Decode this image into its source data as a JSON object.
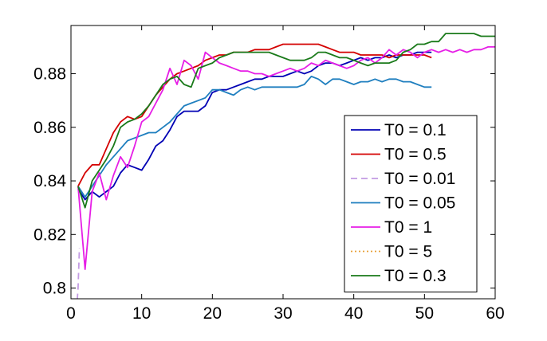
{
  "chart_data": {
    "type": "line",
    "title": "",
    "xlabel": "",
    "ylabel": "",
    "xlim": [
      0,
      60
    ],
    "ylim": [
      0.796,
      0.898
    ],
    "xticks": [
      0,
      10,
      20,
      30,
      40,
      50,
      60
    ],
    "yticks": [
      0.8,
      0.82,
      0.84,
      0.86,
      0.88
    ],
    "xtick_labels": [
      "0",
      "10",
      "20",
      "30",
      "40",
      "50",
      "60"
    ],
    "ytick_labels": [
      "0.8",
      "0.82",
      "0.84",
      "0.86",
      "0.88"
    ],
    "grid": false,
    "legend_position": "lower-right",
    "series": [
      {
        "name": "T0 = 0.1",
        "color": "#0000b4",
        "style": "solid",
        "x": [
          1,
          2,
          3,
          4,
          5,
          6,
          7,
          8,
          9,
          10,
          11,
          12,
          13,
          14,
          15,
          16,
          17,
          18,
          19,
          20,
          21,
          22,
          23,
          24,
          25,
          26,
          27,
          28,
          29,
          30,
          31,
          32,
          33,
          34,
          35,
          36,
          37,
          38,
          39,
          40,
          41,
          42,
          43,
          44,
          45,
          46,
          47,
          48,
          49,
          50,
          51
        ],
        "values": [
          0.837,
          0.833,
          0.836,
          0.834,
          0.836,
          0.838,
          0.843,
          0.846,
          0.845,
          0.844,
          0.848,
          0.853,
          0.855,
          0.859,
          0.864,
          0.866,
          0.866,
          0.866,
          0.868,
          0.873,
          0.874,
          0.874,
          0.875,
          0.876,
          0.877,
          0.878,
          0.878,
          0.879,
          0.879,
          0.879,
          0.88,
          0.881,
          0.88,
          0.881,
          0.883,
          0.884,
          0.884,
          0.883,
          0.884,
          0.885,
          0.886,
          0.885,
          0.886,
          0.886,
          0.887,
          0.886,
          0.887,
          0.887,
          0.888,
          0.888,
          0.888
        ]
      },
      {
        "name": "T0 = 0.5",
        "color": "#d40000",
        "style": "solid",
        "x": [
          1,
          2,
          3,
          4,
          5,
          6,
          7,
          8,
          9,
          10,
          11,
          12,
          13,
          14,
          15,
          16,
          17,
          18,
          19,
          20,
          21,
          22,
          23,
          24,
          25,
          26,
          27,
          28,
          29,
          30,
          31,
          32,
          33,
          34,
          35,
          36,
          37,
          38,
          39,
          40,
          41,
          42,
          43,
          44,
          45,
          46,
          47,
          48,
          49,
          50,
          51
        ],
        "values": [
          0.838,
          0.843,
          0.846,
          0.846,
          0.852,
          0.858,
          0.862,
          0.864,
          0.863,
          0.864,
          0.868,
          0.872,
          0.875,
          0.878,
          0.88,
          0.881,
          0.882,
          0.883,
          0.885,
          0.886,
          0.887,
          0.887,
          0.888,
          0.888,
          0.888,
          0.889,
          0.889,
          0.889,
          0.89,
          0.891,
          0.891,
          0.891,
          0.891,
          0.891,
          0.891,
          0.89,
          0.889,
          0.888,
          0.888,
          0.888,
          0.887,
          0.887,
          0.887,
          0.887,
          0.886,
          0.887,
          0.887,
          0.887,
          0.887,
          0.887,
          0.886
        ]
      },
      {
        "name": "T0 = 0.01",
        "color": "#c39be3",
        "style": "dashed",
        "x": [
          0.6,
          1,
          1.2
        ],
        "values": [
          0.784,
          0.8,
          0.815
        ]
      },
      {
        "name": "T0 = 0.05",
        "color": "#1f7fbf",
        "style": "solid",
        "x": [
          1,
          2,
          3,
          4,
          5,
          6,
          7,
          8,
          9,
          10,
          11,
          12,
          13,
          14,
          15,
          16,
          17,
          18,
          19,
          20,
          21,
          22,
          23,
          24,
          25,
          26,
          27,
          28,
          29,
          30,
          31,
          32,
          33,
          34,
          35,
          36,
          37,
          38,
          39,
          40,
          41,
          42,
          43,
          44,
          45,
          46,
          47,
          48,
          49,
          50,
          51
        ],
        "values": [
          0.838,
          0.834,
          0.838,
          0.842,
          0.846,
          0.849,
          0.852,
          0.855,
          0.856,
          0.857,
          0.858,
          0.858,
          0.86,
          0.862,
          0.865,
          0.868,
          0.869,
          0.87,
          0.871,
          0.874,
          0.874,
          0.873,
          0.872,
          0.874,
          0.875,
          0.874,
          0.875,
          0.875,
          0.875,
          0.875,
          0.875,
          0.875,
          0.876,
          0.879,
          0.878,
          0.876,
          0.878,
          0.878,
          0.877,
          0.876,
          0.877,
          0.877,
          0.878,
          0.877,
          0.878,
          0.878,
          0.877,
          0.877,
          0.876,
          0.875,
          0.875
        ]
      },
      {
        "name": "T0 = 1",
        "color": "#e61ee6",
        "style": "solid",
        "x": [
          1,
          2,
          3,
          4,
          5,
          6,
          7,
          8,
          9,
          10,
          11,
          12,
          13,
          14,
          15,
          16,
          17,
          18,
          19,
          20,
          21,
          22,
          23,
          24,
          25,
          26,
          27,
          28,
          29,
          30,
          31,
          32,
          33,
          34,
          35,
          36,
          37,
          38,
          39,
          40,
          41,
          42,
          43,
          44,
          45,
          46,
          47,
          48,
          49,
          50,
          51,
          52,
          53,
          54,
          55,
          56,
          57,
          58,
          59,
          60
        ],
        "values": [
          0.838,
          0.807,
          0.836,
          0.843,
          0.833,
          0.842,
          0.849,
          0.845,
          0.853,
          0.862,
          0.864,
          0.869,
          0.874,
          0.882,
          0.876,
          0.885,
          0.883,
          0.878,
          0.888,
          0.886,
          0.884,
          0.883,
          0.882,
          0.881,
          0.881,
          0.88,
          0.88,
          0.879,
          0.88,
          0.881,
          0.882,
          0.881,
          0.882,
          0.884,
          0.883,
          0.885,
          0.884,
          0.883,
          0.882,
          0.883,
          0.885,
          0.886,
          0.884,
          0.886,
          0.889,
          0.887,
          0.889,
          0.888,
          0.886,
          0.888,
          0.889,
          0.888,
          0.889,
          0.888,
          0.889,
          0.888,
          0.889,
          0.889,
          0.89,
          0.89
        ]
      },
      {
        "name": "T0 = 5",
        "color": "#e8a23a",
        "style": "dotted",
        "x": [],
        "values": []
      },
      {
        "name": "T0 = 0.3",
        "color": "#1a7a1a",
        "style": "solid",
        "x": [
          1,
          2,
          3,
          4,
          5,
          6,
          7,
          8,
          9,
          10,
          11,
          12,
          13,
          14,
          15,
          16,
          17,
          18,
          19,
          20,
          21,
          22,
          23,
          24,
          25,
          26,
          27,
          28,
          29,
          30,
          31,
          32,
          33,
          34,
          35,
          36,
          37,
          38,
          39,
          40,
          41,
          42,
          43,
          44,
          45,
          46,
          47,
          48,
          49,
          50,
          51,
          52,
          53,
          54,
          55,
          56,
          57,
          58,
          59,
          60
        ],
        "values": [
          0.838,
          0.83,
          0.84,
          0.844,
          0.848,
          0.853,
          0.86,
          0.862,
          0.863,
          0.865,
          0.868,
          0.872,
          0.876,
          0.878,
          0.879,
          0.876,
          0.875,
          0.882,
          0.883,
          0.884,
          0.886,
          0.887,
          0.888,
          0.888,
          0.888,
          0.888,
          0.888,
          0.888,
          0.887,
          0.886,
          0.885,
          0.885,
          0.885,
          0.886,
          0.888,
          0.888,
          0.887,
          0.886,
          0.886,
          0.885,
          0.884,
          0.883,
          0.884,
          0.884,
          0.884,
          0.885,
          0.888,
          0.889,
          0.891,
          0.891,
          0.892,
          0.892,
          0.895,
          0.895,
          0.895,
          0.895,
          0.895,
          0.894,
          0.894,
          0.894
        ]
      }
    ]
  }
}
